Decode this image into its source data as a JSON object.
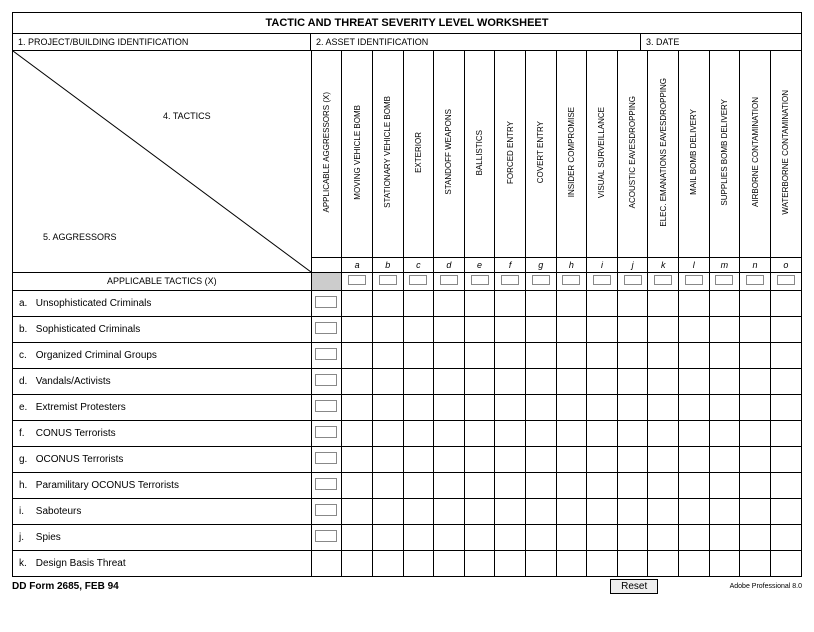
{
  "title": "TACTIC AND THREAT SEVERITY LEVEL WORKSHEET",
  "header": {
    "project": "1.  PROJECT/BUILDING IDENTIFICATION",
    "asset": "2.  ASSET IDENTIFICATION",
    "date": "3.  DATE"
  },
  "diag": {
    "tactics": "4.  TACTICS",
    "aggressors": "5.  AGGRESSORS"
  },
  "col_headers": [
    "APPLICABLE AGGRESSORS (X)",
    "MOVING VEHICLE BOMB",
    "STATIONARY VEHICLE BOMB",
    "EXTERIOR",
    "STANDOFF WEAPONS",
    "BALLISTICS",
    "FORCED ENTRY",
    "COVERT ENTRY",
    "INSIDER COMPROMISE",
    "VISUAL SURVEILLANCE",
    "ACOUSTIC EAVESDROPPING",
    "ELEC. EMANATIONS EAVESDROPPING",
    "MAIL BOMB DELIVERY",
    "SUPPLIES BOMB DELIVERY",
    "AIRBORNE CONTAMINATION",
    "WATERBORNE CONTAMINATION"
  ],
  "col_letters": [
    "",
    "a",
    "b",
    "c",
    "d",
    "e",
    "f",
    "g",
    "h",
    "i",
    "j",
    "k",
    "l",
    "m",
    "n",
    "o"
  ],
  "applicable_tactics": "APPLICABLE TACTICS (X)",
  "rows": [
    {
      "k": "a.",
      "label": "Unsophisticated Criminals",
      "chk": true
    },
    {
      "k": "b.",
      "label": "Sophisticated Criminals",
      "chk": true
    },
    {
      "k": "c.",
      "label": "Organized Criminal Groups",
      "chk": true
    },
    {
      "k": "d.",
      "label": "Vandals/Activists",
      "chk": true
    },
    {
      "k": "e.",
      "label": "Extremist Protesters",
      "chk": true
    },
    {
      "k": "f.",
      "label": "CONUS Terrorists",
      "chk": true
    },
    {
      "k": "g.",
      "label": "OCONUS Terrorists",
      "chk": true
    },
    {
      "k": "h.",
      "label": "Paramilitary OCONUS Terrorists",
      "chk": true
    },
    {
      "k": "i.",
      "label": "Saboteurs",
      "chk": true
    },
    {
      "k": "j.",
      "label": "Spies",
      "chk": true
    },
    {
      "k": "k.",
      "label": "Design Basis Threat",
      "chk": false
    }
  ],
  "footer": {
    "form": "DD Form 2685, FEB 94",
    "reset": "Reset",
    "adobe": "Adobe Professional 8.0"
  }
}
